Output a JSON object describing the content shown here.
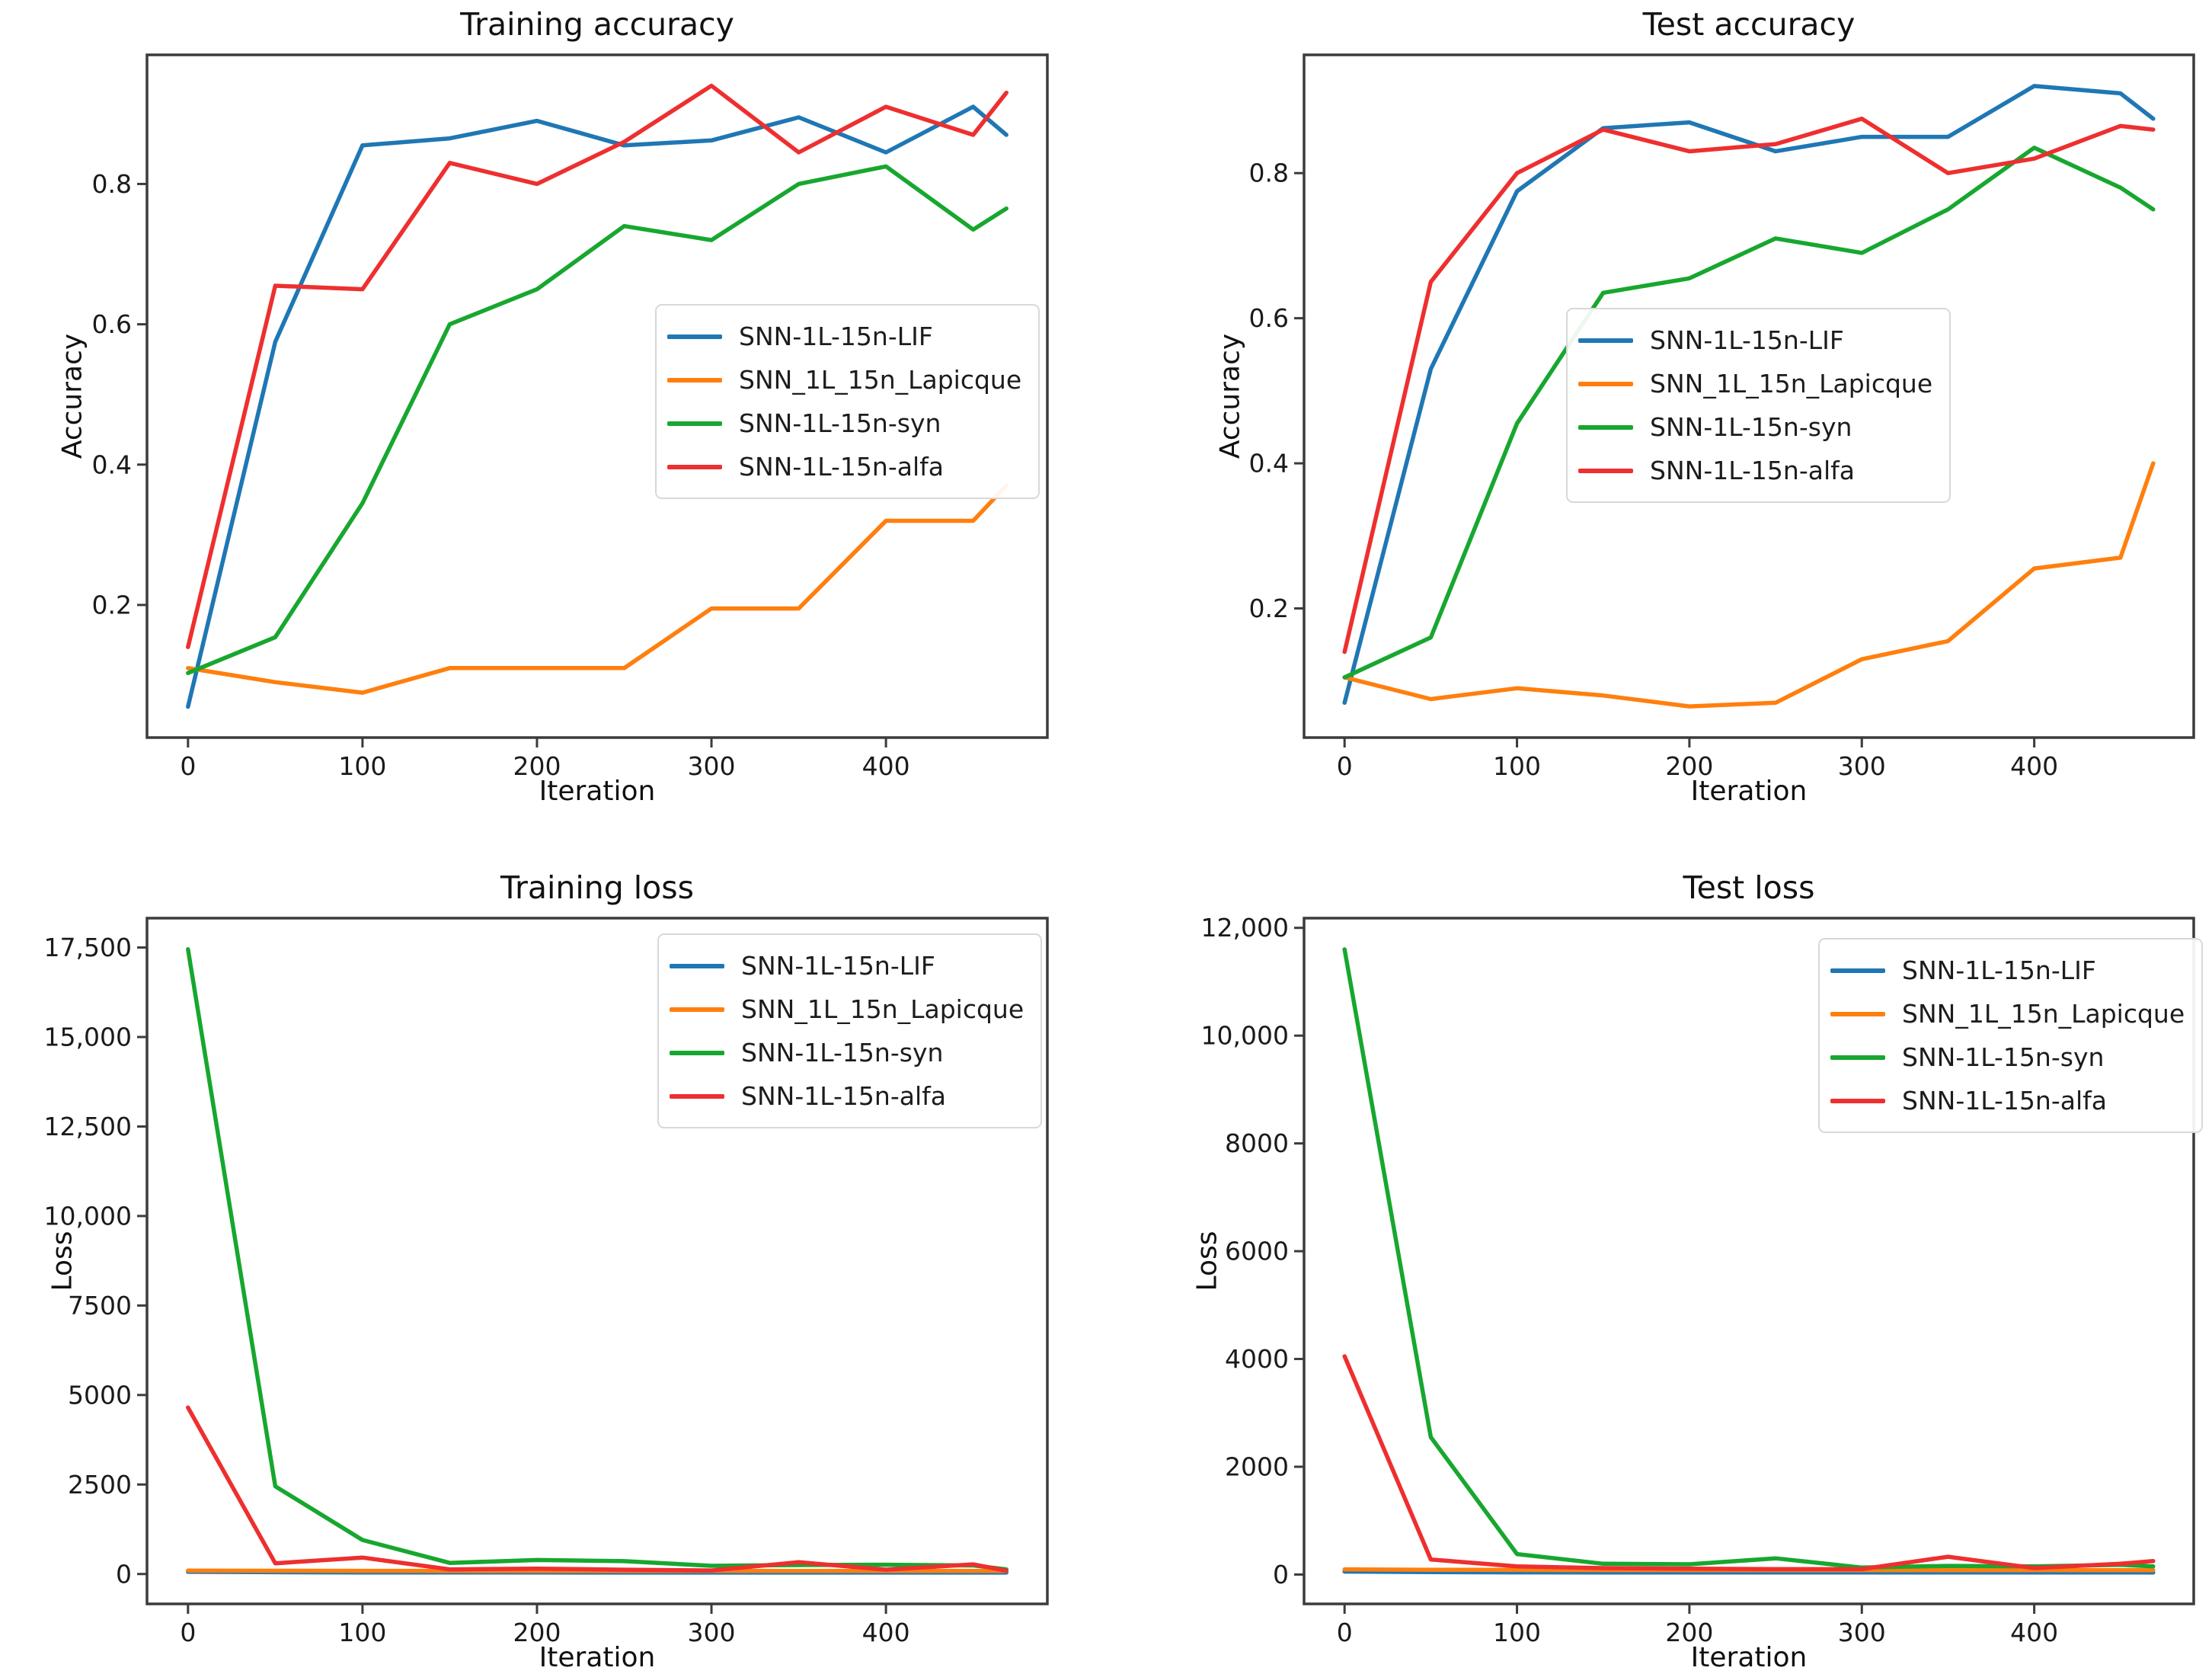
{
  "figure": {
    "background": "#ffffff",
    "frame_color": "#3b3b3b",
    "text_color": "#1a1a1a",
    "layout": "2x2 grid of matplotlib-style line charts"
  },
  "chart_data": [
    {
      "id": "training-accuracy",
      "type": "line",
      "title": "Training accuracy",
      "xlabel": "Iteration",
      "ylabel": "Accuracy",
      "grid": false,
      "legend_position": "center right",
      "x": [
        0,
        50,
        100,
        150,
        200,
        250,
        300,
        350,
        400,
        450,
        469
      ],
      "xlim": [
        -23.5,
        492.5
      ],
      "ylim": [
        0.011,
        0.984
      ],
      "x_ticks": [
        {
          "v": 0,
          "label": "0"
        },
        {
          "v": 100,
          "label": "100"
        },
        {
          "v": 200,
          "label": "200"
        },
        {
          "v": 300,
          "label": "300"
        },
        {
          "v": 400,
          "label": "400"
        }
      ],
      "y_ticks": [
        {
          "v": 0.2,
          "label": "0.2"
        },
        {
          "v": 0.4,
          "label": "0.4"
        },
        {
          "v": 0.6,
          "label": "0.6"
        },
        {
          "v": 0.8,
          "label": "0.8"
        }
      ],
      "series": [
        {
          "name": "SNN-1L-15n-LIF",
          "color": "#1f77b4",
          "values": [
            0.055,
            0.575,
            0.855,
            0.865,
            0.89,
            0.855,
            0.862,
            0.895,
            0.845,
            0.91,
            0.87
          ]
        },
        {
          "name": "SNN_1L_15n_Lapicque",
          "color": "#ff7f0e",
          "values": [
            0.11,
            0.09,
            0.075,
            0.11,
            0.11,
            0.11,
            0.195,
            0.195,
            0.32,
            0.32,
            0.37
          ]
        },
        {
          "name": "SNN-1L-15n-syn",
          "color": "#17a72f",
          "values": [
            0.103,
            0.154,
            0.345,
            0.6,
            0.65,
            0.74,
            0.72,
            0.8,
            0.825,
            0.735,
            0.765
          ]
        },
        {
          "name": "SNN-1L-15n-alfa",
          "color": "#ee2f2f",
          "values": [
            0.14,
            0.655,
            0.65,
            0.83,
            0.8,
            0.86,
            0.94,
            0.845,
            0.91,
            0.87,
            0.93
          ]
        }
      ]
    },
    {
      "id": "test-accuracy",
      "type": "line",
      "title": "Test accuracy",
      "xlabel": "Iteration",
      "ylabel": "Accuracy",
      "grid": false,
      "legend_position": "center",
      "x": [
        0,
        50,
        100,
        150,
        200,
        250,
        300,
        350,
        400,
        450,
        469
      ],
      "xlim": [
        -23.5,
        492.5
      ],
      "ylim": [
        0.022,
        0.963
      ],
      "x_ticks": [
        {
          "v": 0,
          "label": "0"
        },
        {
          "v": 100,
          "label": "100"
        },
        {
          "v": 200,
          "label": "200"
        },
        {
          "v": 300,
          "label": "300"
        },
        {
          "v": 400,
          "label": "400"
        }
      ],
      "y_ticks": [
        {
          "v": 0.2,
          "label": "0.2"
        },
        {
          "v": 0.4,
          "label": "0.4"
        },
        {
          "v": 0.6,
          "label": "0.6"
        },
        {
          "v": 0.8,
          "label": "0.8"
        }
      ],
      "series": [
        {
          "name": "SNN-1L-15n-LIF",
          "color": "#1f77b4",
          "values": [
            0.07,
            0.53,
            0.775,
            0.862,
            0.87,
            0.83,
            0.85,
            0.85,
            0.92,
            0.91,
            0.875
          ]
        },
        {
          "name": "SNN_1L_15n_Lapicque",
          "color": "#ff7f0e",
          "values": [
            0.105,
            0.075,
            0.09,
            0.08,
            0.065,
            0.07,
            0.13,
            0.155,
            0.255,
            0.27,
            0.4
          ]
        },
        {
          "name": "SNN-1L-15n-syn",
          "color": "#17a72f",
          "values": [
            0.105,
            0.16,
            0.455,
            0.635,
            0.655,
            0.71,
            0.69,
            0.75,
            0.835,
            0.78,
            0.75
          ]
        },
        {
          "name": "SNN-1L-15n-alfa",
          "color": "#ee2f2f",
          "values": [
            0.14,
            0.65,
            0.8,
            0.86,
            0.83,
            0.84,
            0.875,
            0.8,
            0.82,
            0.865,
            0.86
          ]
        }
      ]
    },
    {
      "id": "training-loss",
      "type": "line",
      "title": "Training loss",
      "xlabel": "Iteration",
      "ylabel": "Loss",
      "grid": false,
      "legend_position": "upper right",
      "x": [
        0,
        50,
        100,
        150,
        200,
        250,
        300,
        350,
        400,
        450,
        469
      ],
      "xlim": [
        -23.5,
        492.5
      ],
      "ylim": [
        -835,
        18320
      ],
      "x_ticks": [
        {
          "v": 0,
          "label": "0"
        },
        {
          "v": 100,
          "label": "100"
        },
        {
          "v": 200,
          "label": "200"
        },
        {
          "v": 300,
          "label": "300"
        },
        {
          "v": 400,
          "label": "400"
        }
      ],
      "y_ticks": [
        {
          "v": 0,
          "label": "0"
        },
        {
          "v": 2500,
          "label": "2500"
        },
        {
          "v": 5000,
          "label": "5000"
        },
        {
          "v": 7500,
          "label": "7500"
        },
        {
          "v": 10000,
          "label": "10,000"
        },
        {
          "v": 12500,
          "label": "12,500"
        },
        {
          "v": 15000,
          "label": "15,000"
        },
        {
          "v": 17500,
          "label": "17,500"
        }
      ],
      "series": [
        {
          "name": "SNN-1L-15n-LIF",
          "color": "#1f77b4",
          "values": [
            60,
            50,
            45,
            42,
            42,
            40,
            40,
            40,
            40,
            40,
            40
          ]
        },
        {
          "name": "SNN_1L_15n_Lapicque",
          "color": "#ff7f0e",
          "values": [
            95,
            90,
            88,
            86,
            85,
            85,
            85,
            85,
            85,
            85,
            85
          ]
        },
        {
          "name": "SNN-1L-15n-syn",
          "color": "#17a72f",
          "values": [
            17450,
            2450,
            950,
            310,
            390,
            360,
            230,
            250,
            260,
            240,
            130
          ]
        },
        {
          "name": "SNN-1L-15n-alfa",
          "color": "#ee2f2f",
          "values": [
            4650,
            300,
            460,
            130,
            150,
            120,
            100,
            330,
            120,
            270,
            90
          ]
        }
      ]
    },
    {
      "id": "test-loss",
      "type": "line",
      "title": "Test loss",
      "xlabel": "Iteration",
      "ylabel": "Loss",
      "grid": false,
      "legend_position": "upper right",
      "x": [
        0,
        50,
        100,
        150,
        200,
        250,
        300,
        350,
        400,
        450,
        469
      ],
      "xlim": [
        -23.5,
        492.5
      ],
      "ylim": [
        -545,
        12180
      ],
      "x_ticks": [
        {
          "v": 0,
          "label": "0"
        },
        {
          "v": 100,
          "label": "100"
        },
        {
          "v": 200,
          "label": "200"
        },
        {
          "v": 300,
          "label": "300"
        },
        {
          "v": 400,
          "label": "400"
        }
      ],
      "y_ticks": [
        {
          "v": 0,
          "label": "0"
        },
        {
          "v": 2000,
          "label": "2000"
        },
        {
          "v": 4000,
          "label": "4000"
        },
        {
          "v": 6000,
          "label": "6000"
        },
        {
          "v": 8000,
          "label": "8000"
        },
        {
          "v": 10000,
          "label": "10,000"
        },
        {
          "v": 12000,
          "label": "12,000"
        }
      ],
      "series": [
        {
          "name": "SNN-1L-15n-LIF",
          "color": "#1f77b4",
          "values": [
            55,
            45,
            40,
            38,
            38,
            38,
            38,
            38,
            38,
            38,
            38
          ]
        },
        {
          "name": "SNN_1L_15n_Lapicque",
          "color": "#ff7f0e",
          "values": [
            95,
            88,
            85,
            83,
            82,
            82,
            82,
            82,
            82,
            82,
            82
          ]
        },
        {
          "name": "SNN-1L-15n-syn",
          "color": "#17a72f",
          "values": [
            11600,
            2550,
            380,
            200,
            190,
            300,
            130,
            160,
            150,
            180,
            150
          ]
        },
        {
          "name": "SNN-1L-15n-alfa",
          "color": "#ee2f2f",
          "values": [
            4050,
            280,
            150,
            120,
            110,
            100,
            100,
            330,
            120,
            200,
            250
          ]
        }
      ]
    }
  ]
}
